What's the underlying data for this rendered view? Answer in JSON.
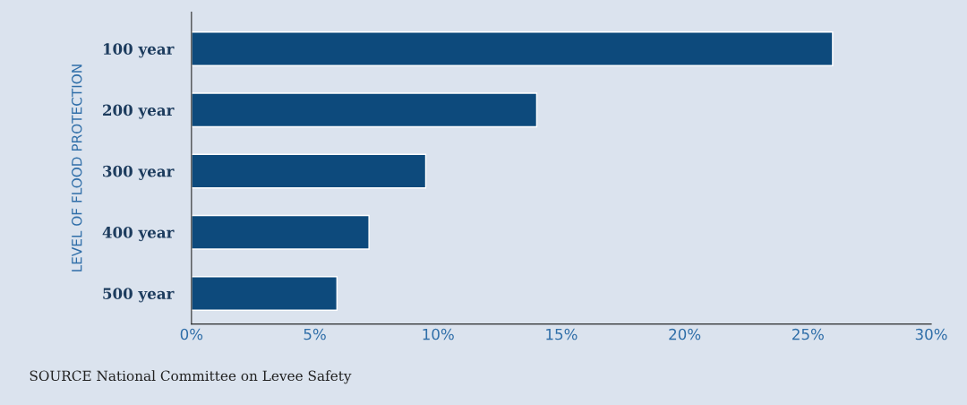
{
  "chart_data": {
    "type": "bar",
    "orientation": "horizontal",
    "ylabel": "LEVEL OF FLOOD PROTECTION",
    "categories": [
      "100 year",
      "200 year",
      "300 year",
      "400 year",
      "500 year"
    ],
    "values": [
      26,
      14,
      9.5,
      7.2,
      5.9
    ],
    "color": "#0d4a7c",
    "xlim": [
      0,
      30
    ],
    "xticks": [
      {
        "value": 0,
        "label": "0%"
      },
      {
        "value": 5,
        "label": "5%"
      },
      {
        "value": 10,
        "label": "10%"
      },
      {
        "value": 15,
        "label": "15%"
      },
      {
        "value": 20,
        "label": "20%"
      },
      {
        "value": 25,
        "label": "25%"
      },
      {
        "value": 30,
        "label": "30%"
      }
    ],
    "grid": false,
    "annotations": [
      "SOURCE National Committee on Levee Safety"
    ]
  }
}
